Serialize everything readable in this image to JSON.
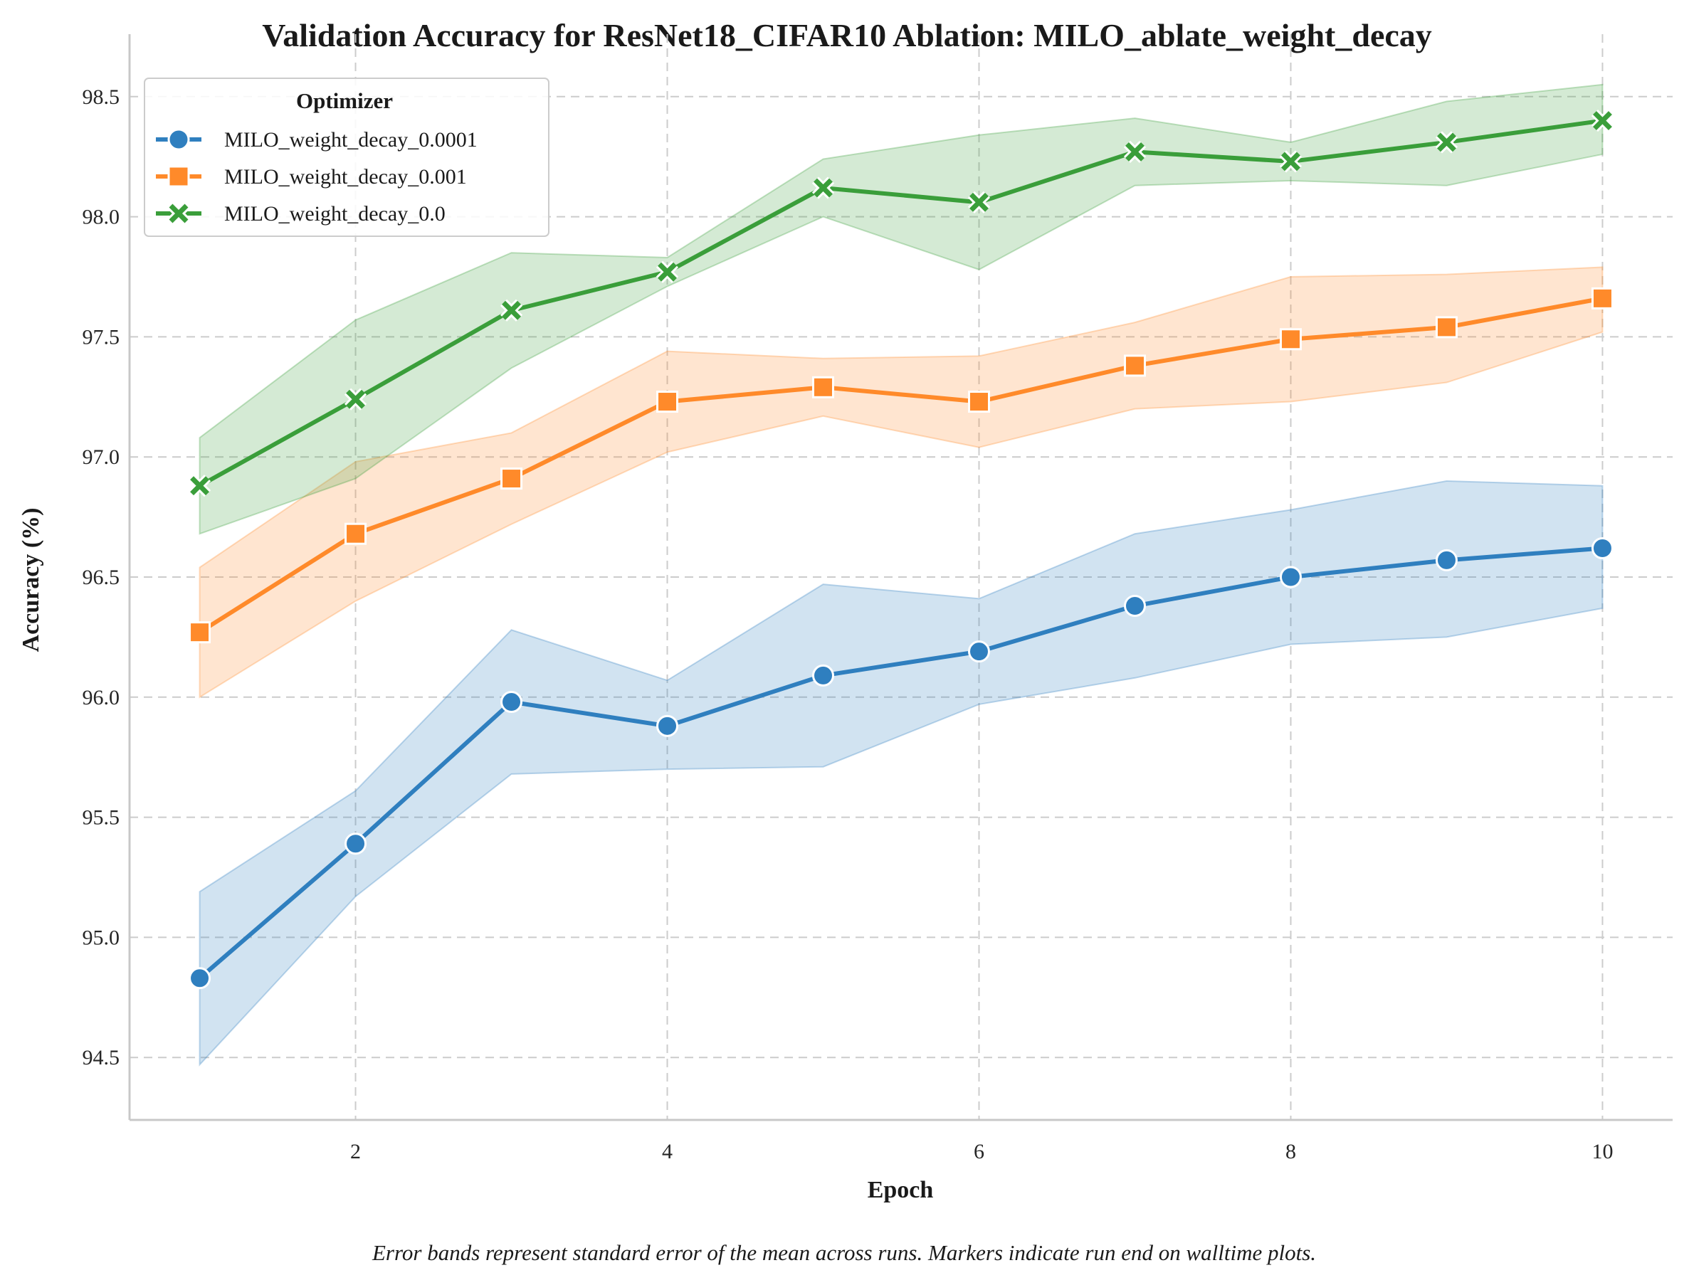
{
  "chart_data": {
    "type": "line",
    "title": "Validation Accuracy for ResNet18_CIFAR10 Ablation: MILO_ablate_weight_decay",
    "xlabel": "Epoch",
    "ylabel": "Accuracy (%)",
    "caption": "Error bands represent standard error of the mean across runs. Markers indicate run end on walltime plots.",
    "x": [
      1,
      2,
      3,
      4,
      5,
      6,
      7,
      8,
      9,
      10
    ],
    "xlim": [
      0.55,
      10.45
    ],
    "ylim": [
      94.24,
      98.76
    ],
    "xticks": [
      2,
      4,
      6,
      8,
      10
    ],
    "xtick_labels": [
      "2",
      "4",
      "6",
      "8",
      "10"
    ],
    "yticks": [
      94.5,
      95.0,
      95.5,
      96.0,
      96.5,
      97.0,
      97.5,
      98.0,
      98.5
    ],
    "ytick_labels": [
      "94.5",
      "95.0",
      "95.5",
      "96.0",
      "96.5",
      "97.0",
      "97.5",
      "98.0",
      "98.5"
    ],
    "grid": true,
    "legend": {
      "title": "Optimizer",
      "position": "top-left"
    },
    "series": [
      {
        "name": "MILO_weight_decay_0.0001",
        "color": "#2f7fbf",
        "marker": "circle",
        "values": [
          94.83,
          95.39,
          95.98,
          95.88,
          96.09,
          96.19,
          96.38,
          96.5,
          96.57,
          96.62
        ],
        "lower": [
          94.47,
          95.17,
          95.68,
          95.7,
          95.71,
          95.97,
          96.08,
          96.22,
          96.25,
          96.37
        ],
        "upper": [
          95.19,
          95.61,
          96.28,
          96.07,
          96.47,
          96.41,
          96.68,
          96.78,
          96.9,
          96.88
        ]
      },
      {
        "name": "MILO_weight_decay_0.001",
        "color": "#ff8a2a",
        "marker": "square",
        "values": [
          96.27,
          96.68,
          96.91,
          97.23,
          97.29,
          97.23,
          97.38,
          97.49,
          97.54,
          97.66
        ],
        "lower": [
          96.0,
          96.4,
          96.72,
          97.02,
          97.17,
          97.04,
          97.2,
          97.23,
          97.31,
          97.52
        ],
        "upper": [
          96.54,
          96.98,
          97.1,
          97.44,
          97.41,
          97.42,
          97.56,
          97.75,
          97.76,
          97.79
        ]
      },
      {
        "name": "MILO_weight_decay_0.0",
        "color": "#3a9e3a",
        "marker": "x",
        "values": [
          96.88,
          97.24,
          97.61,
          97.77,
          98.12,
          98.06,
          98.27,
          98.23,
          98.31,
          98.4
        ],
        "lower": [
          96.68,
          96.91,
          97.37,
          97.71,
          98.0,
          97.78,
          98.13,
          98.15,
          98.13,
          98.26
        ],
        "upper": [
          97.08,
          97.57,
          97.85,
          97.83,
          98.24,
          98.34,
          98.41,
          98.31,
          98.48,
          98.55
        ]
      }
    ]
  }
}
